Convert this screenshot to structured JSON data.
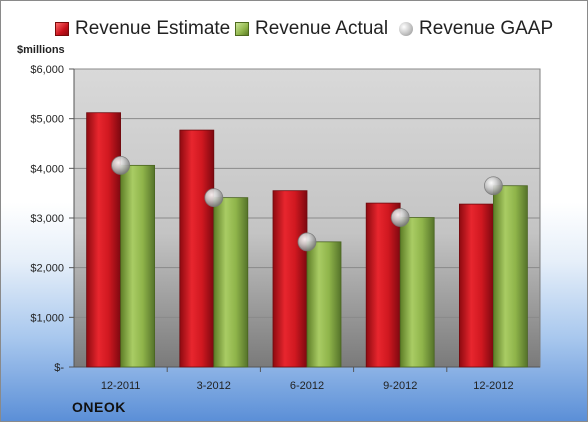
{
  "chart_data": {
    "type": "bar",
    "categories": [
      "12-2011",
      "3-2012",
      "6-2012",
      "9-2012",
      "12-2012"
    ],
    "series": [
      {
        "name": "Revenue Estimate",
        "kind": "bar",
        "color": "#c8101a",
        "values": [
          5120,
          4770,
          3550,
          3300,
          3280
        ]
      },
      {
        "name": "Revenue Actual",
        "kind": "bar",
        "color": "#8fb44a",
        "values": [
          4060,
          3410,
          2520,
          3010,
          3650
        ]
      },
      {
        "name": "Revenue GAAP",
        "kind": "marker",
        "color": "#b0b0b0",
        "values": [
          4060,
          3410,
          2520,
          3010,
          3650
        ]
      }
    ],
    "ylabel": "$millions",
    "ylim": [
      0,
      6000
    ],
    "yticks": [
      0,
      1000,
      2000,
      3000,
      4000,
      5000,
      6000
    ],
    "ytick_labels": [
      "$-",
      "$1,000",
      "$2,000",
      "$3,000",
      "$4,000",
      "$5,000",
      "$6,000"
    ],
    "grid": true,
    "legend_position": "top"
  },
  "company": "ONEOK"
}
